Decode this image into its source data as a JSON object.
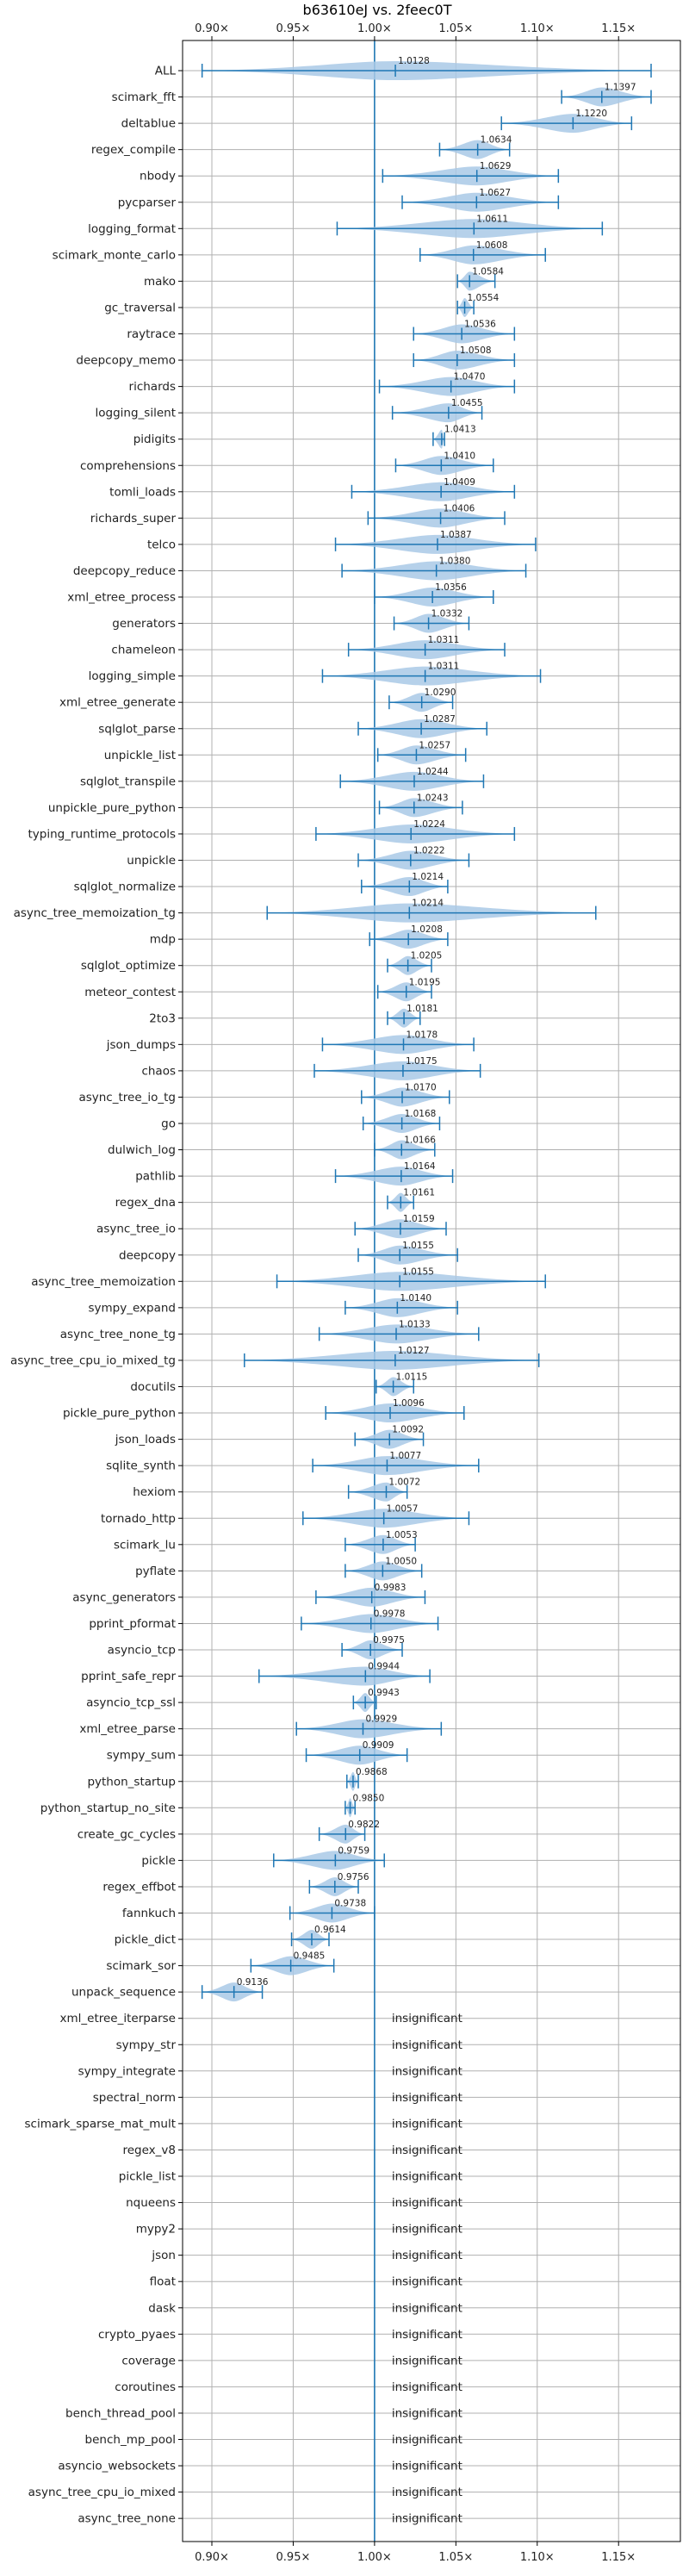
{
  "chart_data": {
    "type": "violin",
    "title": "b63610eJ vs. 2feec0T",
    "xlim": [
      0.882,
      1.188
    ],
    "xticks": [
      0.9,
      0.95,
      1.0,
      1.05,
      1.1,
      1.15
    ],
    "xtick_labels": [
      "0.90×",
      "0.95×",
      "1.00×",
      "1.05×",
      "1.10×",
      "1.15×"
    ],
    "reference_line": 1.0,
    "grid": true,
    "colors": {
      "violin": "#a9c9e6",
      "line": "#1f77b4",
      "ref_line": "#1f77b4",
      "grid": "#b0b0b0"
    },
    "benchmarks": [
      {
        "name": "ALL",
        "value": 1.0128,
        "label": "1.0128",
        "min": 0.894,
        "max": 1.17
      },
      {
        "name": "scimark_fft",
        "value": 1.1397,
        "label": "1.1397",
        "min": 1.115,
        "max": 1.17
      },
      {
        "name": "deltablue",
        "value": 1.122,
        "label": "1.1220",
        "min": 1.078,
        "max": 1.158
      },
      {
        "name": "regex_compile",
        "value": 1.0634,
        "label": "1.0634",
        "min": 1.04,
        "max": 1.083
      },
      {
        "name": "nbody",
        "value": 1.0629,
        "label": "1.0629",
        "min": 1.005,
        "max": 1.113
      },
      {
        "name": "pycparser",
        "value": 1.0627,
        "label": "1.0627",
        "min": 1.017,
        "max": 1.113
      },
      {
        "name": "logging_format",
        "value": 1.0611,
        "label": "1.0611",
        "min": 0.977,
        "max": 1.14
      },
      {
        "name": "scimark_monte_carlo",
        "value": 1.0608,
        "label": "1.0608",
        "min": 1.028,
        "max": 1.105
      },
      {
        "name": "mako",
        "value": 1.0584,
        "label": "1.0584",
        "min": 1.051,
        "max": 1.074
      },
      {
        "name": "gc_traversal",
        "value": 1.0554,
        "label": "1.0554",
        "min": 1.051,
        "max": 1.061
      },
      {
        "name": "raytrace",
        "value": 1.0536,
        "label": "1.0536",
        "min": 1.024,
        "max": 1.086
      },
      {
        "name": "deepcopy_memo",
        "value": 1.0508,
        "label": "1.0508",
        "min": 1.024,
        "max": 1.086
      },
      {
        "name": "richards",
        "value": 1.047,
        "label": "1.0470",
        "min": 1.003,
        "max": 1.086
      },
      {
        "name": "logging_silent",
        "value": 1.0455,
        "label": "1.0455",
        "min": 1.011,
        "max": 1.066
      },
      {
        "name": "pidigits",
        "value": 1.0413,
        "label": "1.0413",
        "min": 1.036,
        "max": 1.043
      },
      {
        "name": "comprehensions",
        "value": 1.041,
        "label": "1.0410",
        "min": 1.013,
        "max": 1.073
      },
      {
        "name": "tomli_loads",
        "value": 1.0409,
        "label": "1.0409",
        "min": 0.986,
        "max": 1.086
      },
      {
        "name": "richards_super",
        "value": 1.0406,
        "label": "1.0406",
        "min": 0.996,
        "max": 1.08
      },
      {
        "name": "telco",
        "value": 1.0387,
        "label": "1.0387",
        "min": 0.976,
        "max": 1.099
      },
      {
        "name": "deepcopy_reduce",
        "value": 1.038,
        "label": "1.0380",
        "min": 0.98,
        "max": 1.093
      },
      {
        "name": "xml_etree_process",
        "value": 1.0356,
        "label": "1.0356",
        "min": 1.0,
        "max": 1.073
      },
      {
        "name": "generators",
        "value": 1.0332,
        "label": "1.0332",
        "min": 1.012,
        "max": 1.058
      },
      {
        "name": "chameleon",
        "value": 1.0311,
        "label": "1.0311",
        "min": 0.984,
        "max": 1.08
      },
      {
        "name": "logging_simple",
        "value": 1.0311,
        "label": "1.0311",
        "min": 0.968,
        "max": 1.102
      },
      {
        "name": "xml_etree_generate",
        "value": 1.029,
        "label": "1.0290",
        "min": 1.009,
        "max": 1.048
      },
      {
        "name": "sqlglot_parse",
        "value": 1.0287,
        "label": "1.0287",
        "min": 0.99,
        "max": 1.069
      },
      {
        "name": "unpickle_list",
        "value": 1.0257,
        "label": "1.0257",
        "min": 1.002,
        "max": 1.056
      },
      {
        "name": "sqlglot_transpile",
        "value": 1.0244,
        "label": "1.0244",
        "min": 0.979,
        "max": 1.067
      },
      {
        "name": "unpickle_pure_python",
        "value": 1.0243,
        "label": "1.0243",
        "min": 1.003,
        "max": 1.054
      },
      {
        "name": "typing_runtime_protocols",
        "value": 1.0224,
        "label": "1.0224",
        "min": 0.964,
        "max": 1.086
      },
      {
        "name": "unpickle",
        "value": 1.0222,
        "label": "1.0222",
        "min": 0.99,
        "max": 1.058
      },
      {
        "name": "sqlglot_normalize",
        "value": 1.0214,
        "label": "1.0214",
        "min": 0.992,
        "max": 1.045
      },
      {
        "name": "async_tree_memoization_tg",
        "value": 1.0214,
        "label": "1.0214",
        "min": 0.934,
        "max": 1.136
      },
      {
        "name": "mdp",
        "value": 1.0208,
        "label": "1.0208",
        "min": 0.997,
        "max": 1.045
      },
      {
        "name": "sqlglot_optimize",
        "value": 1.0205,
        "label": "1.0205",
        "min": 1.008,
        "max": 1.035
      },
      {
        "name": "meteor_contest",
        "value": 1.0195,
        "label": "1.0195",
        "min": 1.002,
        "max": 1.035
      },
      {
        "name": "2to3",
        "value": 1.0181,
        "label": "1.0181",
        "min": 1.008,
        "max": 1.028
      },
      {
        "name": "json_dumps",
        "value": 1.0178,
        "label": "1.0178",
        "min": 0.968,
        "max": 1.061
      },
      {
        "name": "chaos",
        "value": 1.0175,
        "label": "1.0175",
        "min": 0.963,
        "max": 1.065
      },
      {
        "name": "async_tree_io_tg",
        "value": 1.017,
        "label": "1.0170",
        "min": 0.992,
        "max": 1.046
      },
      {
        "name": "go",
        "value": 1.0168,
        "label": "1.0168",
        "min": 0.993,
        "max": 1.04
      },
      {
        "name": "dulwich_log",
        "value": 1.0166,
        "label": "1.0166",
        "min": 1.0,
        "max": 1.037
      },
      {
        "name": "pathlib",
        "value": 1.0164,
        "label": "1.0164",
        "min": 0.976,
        "max": 1.048
      },
      {
        "name": "regex_dna",
        "value": 1.0161,
        "label": "1.0161",
        "min": 1.008,
        "max": 1.024
      },
      {
        "name": "async_tree_io",
        "value": 1.0159,
        "label": "1.0159",
        "min": 0.988,
        "max": 1.044
      },
      {
        "name": "deepcopy",
        "value": 1.0155,
        "label": "1.0155",
        "min": 0.99,
        "max": 1.051
      },
      {
        "name": "async_tree_memoization",
        "value": 1.0155,
        "label": "1.0155",
        "min": 0.94,
        "max": 1.105
      },
      {
        "name": "sympy_expand",
        "value": 1.014,
        "label": "1.0140",
        "min": 0.982,
        "max": 1.051
      },
      {
        "name": "async_tree_none_tg",
        "value": 1.0133,
        "label": "1.0133",
        "min": 0.966,
        "max": 1.064
      },
      {
        "name": "async_tree_cpu_io_mixed_tg",
        "value": 1.0127,
        "label": "1.0127",
        "min": 0.92,
        "max": 1.101
      },
      {
        "name": "docutils",
        "value": 1.0115,
        "label": "1.0115",
        "min": 1.001,
        "max": 1.024
      },
      {
        "name": "pickle_pure_python",
        "value": 1.0096,
        "label": "1.0096",
        "min": 0.97,
        "max": 1.055
      },
      {
        "name": "json_loads",
        "value": 1.0092,
        "label": "1.0092",
        "min": 0.988,
        "max": 1.03
      },
      {
        "name": "sqlite_synth",
        "value": 1.0077,
        "label": "1.0077",
        "min": 0.962,
        "max": 1.064
      },
      {
        "name": "hexiom",
        "value": 1.0072,
        "label": "1.0072",
        "min": 0.984,
        "max": 1.02
      },
      {
        "name": "tornado_http",
        "value": 1.0057,
        "label": "1.0057",
        "min": 0.956,
        "max": 1.058
      },
      {
        "name": "scimark_lu",
        "value": 1.0053,
        "label": "1.0053",
        "min": 0.982,
        "max": 1.025
      },
      {
        "name": "pyflate",
        "value": 1.005,
        "label": "1.0050",
        "min": 0.982,
        "max": 1.029
      },
      {
        "name": "async_generators",
        "value": 0.9983,
        "label": "0.9983",
        "min": 0.964,
        "max": 1.031
      },
      {
        "name": "pprint_pformat",
        "value": 0.9978,
        "label": "0.9978",
        "min": 0.955,
        "max": 1.039
      },
      {
        "name": "asyncio_tcp",
        "value": 0.9975,
        "label": "0.9975",
        "min": 0.98,
        "max": 1.017
      },
      {
        "name": "pprint_safe_repr",
        "value": 0.9944,
        "label": "0.9944",
        "min": 0.929,
        "max": 1.034
      },
      {
        "name": "asyncio_tcp_ssl",
        "value": 0.9943,
        "label": "0.9943",
        "min": 0.987,
        "max": 1.001
      },
      {
        "name": "xml_etree_parse",
        "value": 0.9929,
        "label": "0.9929",
        "min": 0.952,
        "max": 1.041
      },
      {
        "name": "sympy_sum",
        "value": 0.9909,
        "label": "0.9909",
        "min": 0.958,
        "max": 1.02
      },
      {
        "name": "python_startup",
        "value": 0.9868,
        "label": "0.9868",
        "min": 0.983,
        "max": 0.99
      },
      {
        "name": "python_startup_no_site",
        "value": 0.985,
        "label": "0.9850",
        "min": 0.982,
        "max": 0.988
      },
      {
        "name": "create_gc_cycles",
        "value": 0.9822,
        "label": "0.9822",
        "min": 0.966,
        "max": 0.994
      },
      {
        "name": "pickle",
        "value": 0.9759,
        "label": "0.9759",
        "min": 0.938,
        "max": 1.006
      },
      {
        "name": "regex_effbot",
        "value": 0.9756,
        "label": "0.9756",
        "min": 0.96,
        "max": 0.99
      },
      {
        "name": "fannkuch",
        "value": 0.9738,
        "label": "0.9738",
        "min": 0.948,
        "max": 1.0
      },
      {
        "name": "pickle_dict",
        "value": 0.9614,
        "label": "0.9614",
        "min": 0.949,
        "max": 0.972
      },
      {
        "name": "scimark_sor",
        "value": 0.9485,
        "label": "0.9485",
        "min": 0.924,
        "max": 0.975
      },
      {
        "name": "unpack_sequence",
        "value": 0.9136,
        "label": "0.9136",
        "min": 0.894,
        "max": 0.931
      },
      {
        "name": "xml_etree_iterparse",
        "label": "insignificant"
      },
      {
        "name": "sympy_str",
        "label": "insignificant"
      },
      {
        "name": "sympy_integrate",
        "label": "insignificant"
      },
      {
        "name": "spectral_norm",
        "label": "insignificant"
      },
      {
        "name": "scimark_sparse_mat_mult",
        "label": "insignificant"
      },
      {
        "name": "regex_v8",
        "label": "insignificant"
      },
      {
        "name": "pickle_list",
        "label": "insignificant"
      },
      {
        "name": "nqueens",
        "label": "insignificant"
      },
      {
        "name": "mypy2",
        "label": "insignificant"
      },
      {
        "name": "json",
        "label": "insignificant"
      },
      {
        "name": "float",
        "label": "insignificant"
      },
      {
        "name": "dask",
        "label": "insignificant"
      },
      {
        "name": "crypto_pyaes",
        "label": "insignificant"
      },
      {
        "name": "coverage",
        "label": "insignificant"
      },
      {
        "name": "coroutines",
        "label": "insignificant"
      },
      {
        "name": "bench_thread_pool",
        "label": "insignificant"
      },
      {
        "name": "bench_mp_pool",
        "label": "insignificant"
      },
      {
        "name": "asyncio_websockets",
        "label": "insignificant"
      },
      {
        "name": "async_tree_cpu_io_mixed",
        "label": "insignificant"
      },
      {
        "name": "async_tree_none",
        "label": "insignificant"
      }
    ]
  }
}
